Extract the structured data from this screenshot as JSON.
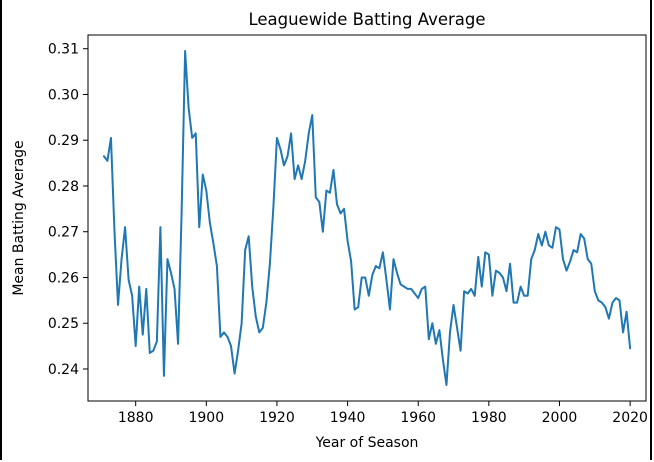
{
  "chart_data": {
    "type": "line",
    "title": "Leaguewide Batting Average",
    "xlabel": "Year of Season",
    "ylabel": "Mean Batting Average",
    "xlim": [
      1866.5,
      2024.5
    ],
    "ylim": [
      0.233,
      0.313
    ],
    "xticks": [
      1880,
      1900,
      1920,
      1940,
      1960,
      1980,
      2000,
      2020
    ],
    "xtick_labels": [
      "1880",
      "1900",
      "1920",
      "1940",
      "1960",
      "1980",
      "2000",
      "2020"
    ],
    "yticks": [
      0.24,
      0.25,
      0.26,
      0.27,
      0.28,
      0.29,
      0.3,
      0.31
    ],
    "ytick_labels": [
      "0.24",
      "0.25",
      "0.26",
      "0.27",
      "0.28",
      "0.29",
      "0.30",
      "0.31"
    ],
    "grid": false,
    "series": [
      {
        "color": "#1f77b4",
        "x": [
          1871,
          1872,
          1873,
          1874,
          1875,
          1876,
          1877,
          1878,
          1879,
          1880,
          1881,
          1882,
          1883,
          1884,
          1885,
          1886,
          1887,
          1888,
          1889,
          1890,
          1891,
          1892,
          1893,
          1894,
          1895,
          1896,
          1897,
          1898,
          1899,
          1900,
          1901,
          1902,
          1903,
          1904,
          1905,
          1906,
          1907,
          1908,
          1909,
          1910,
          1911,
          1912,
          1913,
          1914,
          1915,
          1916,
          1917,
          1918,
          1919,
          1920,
          1921,
          1922,
          1923,
          1924,
          1925,
          1926,
          1927,
          1928,
          1929,
          1930,
          1931,
          1932,
          1933,
          1934,
          1935,
          1936,
          1937,
          1938,
          1939,
          1940,
          1941,
          1942,
          1943,
          1944,
          1945,
          1946,
          1947,
          1948,
          1949,
          1950,
          1951,
          1952,
          1953,
          1954,
          1955,
          1956,
          1957,
          1958,
          1959,
          1960,
          1961,
          1962,
          1963,
          1964,
          1965,
          1966,
          1967,
          1968,
          1969,
          1970,
          1971,
          1972,
          1973,
          1974,
          1975,
          1976,
          1977,
          1978,
          1979,
          1980,
          1981,
          1982,
          1983,
          1984,
          1985,
          1986,
          1987,
          1988,
          1989,
          1990,
          1991,
          1992,
          1993,
          1994,
          1995,
          1996,
          1997,
          1998,
          1999,
          2000,
          2001,
          2002,
          2003,
          2004,
          2005,
          2006,
          2007,
          2008,
          2009,
          2010,
          2011,
          2012,
          2013,
          2014,
          2015,
          2016,
          2017,
          2018,
          2019,
          2020
        ],
        "y": [
          0.2865,
          0.2855,
          0.2905,
          0.27,
          0.254,
          0.264,
          0.271,
          0.2595,
          0.256,
          0.245,
          0.258,
          0.2475,
          0.2575,
          0.2435,
          0.244,
          0.246,
          0.271,
          0.2385,
          0.264,
          0.261,
          0.2575,
          0.2455,
          0.274,
          0.3095,
          0.297,
          0.2905,
          0.2915,
          0.271,
          0.2825,
          0.279,
          0.272,
          0.2675,
          0.2625,
          0.247,
          0.248,
          0.247,
          0.245,
          0.239,
          0.244,
          0.25,
          0.266,
          0.269,
          0.258,
          0.2515,
          0.248,
          0.249,
          0.2545,
          0.263,
          0.2755,
          0.2905,
          0.288,
          0.2845,
          0.2865,
          0.2915,
          0.2815,
          0.2845,
          0.2815,
          0.2855,
          0.2915,
          0.2955,
          0.2775,
          0.2765,
          0.27,
          0.279,
          0.2785,
          0.2835,
          0.276,
          0.274,
          0.275,
          0.268,
          0.2635,
          0.253,
          0.2535,
          0.26,
          0.26,
          0.256,
          0.2605,
          0.2625,
          0.262,
          0.2655,
          0.2595,
          0.253,
          0.264,
          0.261,
          0.2585,
          0.258,
          0.2575,
          0.2575,
          0.2565,
          0.2555,
          0.2575,
          0.258,
          0.2465,
          0.25,
          0.2455,
          0.2485,
          0.242,
          0.2365,
          0.248,
          0.254,
          0.249,
          0.244,
          0.257,
          0.2565,
          0.2575,
          0.256,
          0.2645,
          0.258,
          0.2655,
          0.265,
          0.256,
          0.2615,
          0.261,
          0.26,
          0.257,
          0.263,
          0.2545,
          0.2545,
          0.258,
          0.256,
          0.256,
          0.264,
          0.266,
          0.2695,
          0.267,
          0.27,
          0.267,
          0.2665,
          0.271,
          0.2705,
          0.264,
          0.2615,
          0.2635,
          0.266,
          0.2655,
          0.2695,
          0.2685,
          0.264,
          0.263,
          0.257,
          0.255,
          0.2545,
          0.2535,
          0.251,
          0.2545,
          0.2555,
          0.255,
          0.248,
          0.2525,
          0.2445
        ]
      }
    ]
  }
}
